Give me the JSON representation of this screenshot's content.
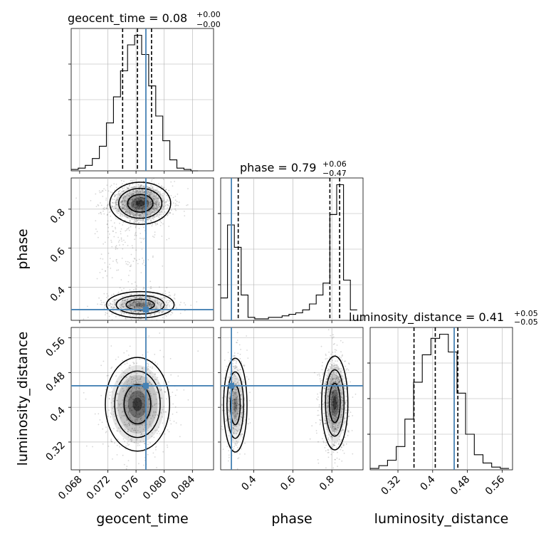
{
  "colors": {
    "truth": "#4682b4",
    "hist": "#000000",
    "grid": "#b0b0b0"
  },
  "chart_data": {
    "type": "corner",
    "grid": true,
    "parameters": [
      "geocent_time",
      "phase",
      "luminosity_distance"
    ],
    "truths": {
      "geocent_time": 0.0774,
      "phase": 0.285,
      "luminosity_distance": 0.4496
    },
    "diagonal": [
      {
        "parameter": "geocent_time",
        "title": {
          "main": "geocent_time = 0.08",
          "sup": "+0.00",
          "sub": "−0.00"
        },
        "xlim": [
          0.0668,
          0.087
        ],
        "quantiles": [
          0.0741,
          0.0762,
          0.0782
        ],
        "bins": [
          0.0668,
          0.0678,
          0.0688,
          0.0698,
          0.0708,
          0.0718,
          0.0728,
          0.0738,
          0.0748,
          0.0758,
          0.0768,
          0.0778,
          0.0788,
          0.0798,
          0.0808,
          0.0818,
          0.0828,
          0.0838,
          0.0848
        ],
        "counts": [
          0.01,
          0.02,
          0.04,
          0.09,
          0.18,
          0.35,
          0.54,
          0.73,
          0.92,
          0.99,
          0.85,
          0.62,
          0.4,
          0.22,
          0.08,
          0.02,
          0.01,
          0.0
        ]
      },
      {
        "parameter": "phase",
        "title": {
          "main": "phase = 0.79",
          "sup": "+0.06",
          "sub": "−0.47"
        },
        "xlim": [
          0.23,
          0.96
        ],
        "quantiles": [
          0.32,
          0.79,
          0.84
        ],
        "bins": [
          0.23,
          0.265,
          0.3,
          0.335,
          0.37,
          0.405,
          0.44,
          0.475,
          0.51,
          0.545,
          0.58,
          0.615,
          0.65,
          0.685,
          0.72,
          0.755,
          0.79,
          0.825,
          0.86,
          0.895,
          0.93
        ],
        "counts": [
          0.15,
          0.64,
          0.49,
          0.17,
          0.02,
          0.01,
          0.01,
          0.02,
          0.02,
          0.03,
          0.04,
          0.05,
          0.07,
          0.11,
          0.17,
          0.25,
          0.71,
          0.91,
          0.27,
          0.07
        ]
      },
      {
        "parameter": "luminosity_distance",
        "title": {
          "main": "luminosity_distance = 0.41",
          "sup": "+0.05",
          "sub": "−0.05"
        },
        "xlim": [
          0.256,
          0.584
        ],
        "quantiles": [
          0.357,
          0.406,
          0.458
        ],
        "bins": [
          0.256,
          0.276,
          0.296,
          0.316,
          0.336,
          0.356,
          0.376,
          0.396,
          0.416,
          0.436,
          0.456,
          0.476,
          0.496,
          0.516,
          0.536,
          0.556,
          0.576
        ],
        "counts": [
          0.01,
          0.03,
          0.07,
          0.17,
          0.37,
          0.64,
          0.84,
          0.96,
          0.99,
          0.86,
          0.56,
          0.26,
          0.11,
          0.05,
          0.02,
          0.01
        ]
      }
    ],
    "pairs": [
      {
        "x": "geocent_time",
        "y": "phase",
        "xlim": [
          0.0668,
          0.087
        ],
        "ylim": [
          0.23,
          0.96
        ],
        "yticks": [
          0.4,
          0.6,
          0.8
        ],
        "density_peaks": [
          {
            "x": 0.0766,
            "y": 0.83,
            "sx": 0.0018,
            "sy": 0.045,
            "weight": 1.0
          },
          {
            "x": 0.0766,
            "y": 0.31,
            "sx": 0.002,
            "sy": 0.028,
            "weight": 0.6
          },
          {
            "x": 0.0748,
            "y": 0.6,
            "sx": 0.0018,
            "sy": 0.12,
            "weight": 0.15
          }
        ]
      },
      {
        "x": "geocent_time",
        "y": "luminosity_distance",
        "xlim": [
          0.0668,
          0.087
        ],
        "ylim": [
          0.256,
          0.584
        ],
        "xticks": [
          0.068,
          0.072,
          0.076,
          0.08,
          0.084
        ],
        "yticks": [
          0.32,
          0.4,
          0.48,
          0.56
        ],
        "density_peaks": [
          {
            "x": 0.0762,
            "y": 0.407,
            "sx": 0.0019,
            "sy": 0.045,
            "weight": 1.0
          }
        ]
      },
      {
        "x": "phase",
        "y": "luminosity_distance",
        "xlim": [
          0.23,
          0.96
        ],
        "ylim": [
          0.256,
          0.584
        ],
        "xticks": [
          0.4,
          0.6,
          0.8
        ],
        "density_peaks": [
          {
            "x": 0.305,
            "y": 0.405,
            "sx": 0.025,
            "sy": 0.045,
            "weight": 0.55
          },
          {
            "x": 0.815,
            "y": 0.41,
            "sx": 0.028,
            "sy": 0.045,
            "weight": 1.0
          }
        ]
      }
    ],
    "diag_xticks": {
      "luminosity_distance": [
        0.32,
        0.4,
        0.48,
        0.56
      ]
    },
    "contour_levels": [
      0.39,
      0.86,
      0.99
    ]
  }
}
